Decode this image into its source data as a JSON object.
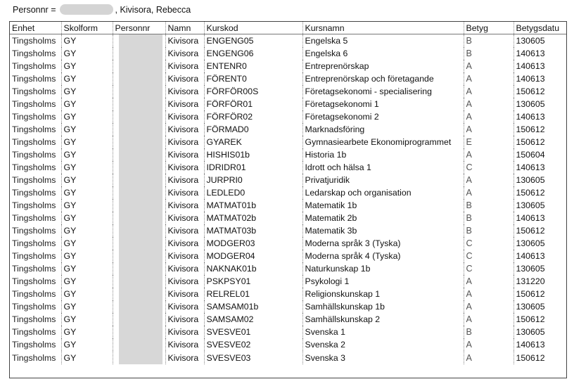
{
  "header": {
    "label": "Personnr =",
    "name_suffix": ", Kivisora, Rebecca"
  },
  "table": {
    "columns": [
      "Enhet",
      "Skolform",
      "Personnr",
      "Namn",
      "Kurskod",
      "Kursnamn",
      "Betyg",
      "Betygsdatu"
    ],
    "rows": [
      {
        "enhet": "Tingsholms",
        "skolform": "GY",
        "namn": "Kivisora",
        "kurskod": "ENGENG05",
        "kursnamn": "Engelska 5",
        "betyg": "B",
        "datum": "130605"
      },
      {
        "enhet": "Tingsholms",
        "skolform": "GY",
        "namn": "Kivisora",
        "kurskod": "ENGENG06",
        "kursnamn": "Engelska 6",
        "betyg": "B",
        "datum": "140613"
      },
      {
        "enhet": "Tingsholms",
        "skolform": "GY",
        "namn": "Kivisora",
        "kurskod": "ENTENR0",
        "kursnamn": "Entreprenörskap",
        "betyg": "A",
        "datum": "140613"
      },
      {
        "enhet": "Tingsholms",
        "skolform": "GY",
        "namn": "Kivisora",
        "kurskod": "FÖRENT0",
        "kursnamn": "Entreprenörskap och företagande",
        "betyg": "A",
        "datum": "140613"
      },
      {
        "enhet": "Tingsholms",
        "skolform": "GY",
        "namn": "Kivisora",
        "kurskod": "FÖRFÖR00S",
        "kursnamn": "Företagsekonomi - specialisering",
        "betyg": "A",
        "datum": "150612"
      },
      {
        "enhet": "Tingsholms",
        "skolform": "GY",
        "namn": "Kivisora",
        "kurskod": "FÖRFÖR01",
        "kursnamn": "Företagsekonomi 1",
        "betyg": "A",
        "datum": "130605"
      },
      {
        "enhet": "Tingsholms",
        "skolform": "GY",
        "namn": "Kivisora",
        "kurskod": "FÖRFÖR02",
        "kursnamn": "Företagsekonomi 2",
        "betyg": "A",
        "datum": "140613"
      },
      {
        "enhet": "Tingsholms",
        "skolform": "GY",
        "namn": "Kivisora",
        "kurskod": "FÖRMAD0",
        "kursnamn": "Marknadsföring",
        "betyg": "A",
        "datum": "150612"
      },
      {
        "enhet": "Tingsholms",
        "skolform": "GY",
        "namn": "Kivisora",
        "kurskod": "GYAREK",
        "kursnamn": "Gymnasiearbete Ekonomiprogrammet",
        "betyg": "E",
        "datum": "150612"
      },
      {
        "enhet": "Tingsholms",
        "skolform": "GY",
        "namn": "Kivisora",
        "kurskod": "HISHIS01b",
        "kursnamn": "Historia 1b",
        "betyg": "A",
        "datum": "150604"
      },
      {
        "enhet": "Tingsholms",
        "skolform": "GY",
        "namn": "Kivisora",
        "kurskod": "IDRIDR01",
        "kursnamn": "Idrott och hälsa 1",
        "betyg": "C",
        "datum": "140613"
      },
      {
        "enhet": "Tingsholms",
        "skolform": "GY",
        "namn": "Kivisora",
        "kurskod": "JURPRI0",
        "kursnamn": "Privatjuridik",
        "betyg": "A",
        "datum": "130605"
      },
      {
        "enhet": "Tingsholms",
        "skolform": "GY",
        "namn": "Kivisora",
        "kurskod": "LEDLED0",
        "kursnamn": "Ledarskap och organisation",
        "betyg": "A",
        "datum": "150612"
      },
      {
        "enhet": "Tingsholms",
        "skolform": "GY",
        "namn": "Kivisora",
        "kurskod": "MATMAT01b",
        "kursnamn": "Matematik 1b",
        "betyg": "B",
        "datum": "130605"
      },
      {
        "enhet": "Tingsholms",
        "skolform": "GY",
        "namn": "Kivisora",
        "kurskod": "MATMAT02b",
        "kursnamn": "Matematik 2b",
        "betyg": "B",
        "datum": "140613"
      },
      {
        "enhet": "Tingsholms",
        "skolform": "GY",
        "namn": "Kivisora",
        "kurskod": "MATMAT03b",
        "kursnamn": "Matematik 3b",
        "betyg": "B",
        "datum": "150612"
      },
      {
        "enhet": "Tingsholms",
        "skolform": "GY",
        "namn": "Kivisora",
        "kurskod": "MODGER03",
        "kursnamn": "Moderna språk 3 (Tyska)",
        "betyg": "C",
        "datum": "130605"
      },
      {
        "enhet": "Tingsholms",
        "skolform": "GY",
        "namn": "Kivisora",
        "kurskod": "MODGER04",
        "kursnamn": "Moderna språk 4 (Tyska)",
        "betyg": "C",
        "datum": "140613"
      },
      {
        "enhet": "Tingsholms",
        "skolform": "GY",
        "namn": "Kivisora",
        "kurskod": "NAKNAK01b",
        "kursnamn": "Naturkunskap 1b",
        "betyg": "C",
        "datum": "130605"
      },
      {
        "enhet": "Tingsholms",
        "skolform": "GY",
        "namn": "Kivisora",
        "kurskod": "PSKPSY01",
        "kursnamn": "Psykologi 1",
        "betyg": "A",
        "datum": "131220"
      },
      {
        "enhet": "Tingsholms",
        "skolform": "GY",
        "namn": "Kivisora",
        "kurskod": "RELREL01",
        "kursnamn": "Religionskunskap 1",
        "betyg": "A",
        "datum": "150612"
      },
      {
        "enhet": "Tingsholms",
        "skolform": "GY",
        "namn": "Kivisora",
        "kurskod": "SAMSAM01b",
        "kursnamn": "Samhällskunskap 1b",
        "betyg": "A",
        "datum": "130605"
      },
      {
        "enhet": "Tingsholms",
        "skolform": "GY",
        "namn": "Kivisora",
        "kurskod": "SAMSAM02",
        "kursnamn": "Samhällskunskap 2",
        "betyg": "A",
        "datum": "150612"
      },
      {
        "enhet": "Tingsholms",
        "skolform": "GY",
        "namn": "Kivisora",
        "kurskod": "SVESVE01",
        "kursnamn": "Svenska 1",
        "betyg": "B",
        "datum": "130605"
      },
      {
        "enhet": "Tingsholms",
        "skolform": "GY",
        "namn": "Kivisora",
        "kurskod": "SVESVE02",
        "kursnamn": "Svenska 2",
        "betyg": "A",
        "datum": "140613"
      },
      {
        "enhet": "Tingsholms",
        "skolform": "GY",
        "namn": "Kivisora",
        "kurskod": "SVESVE03",
        "kursnamn": "Svenska 3",
        "betyg": "A",
        "datum": "150612"
      }
    ]
  }
}
